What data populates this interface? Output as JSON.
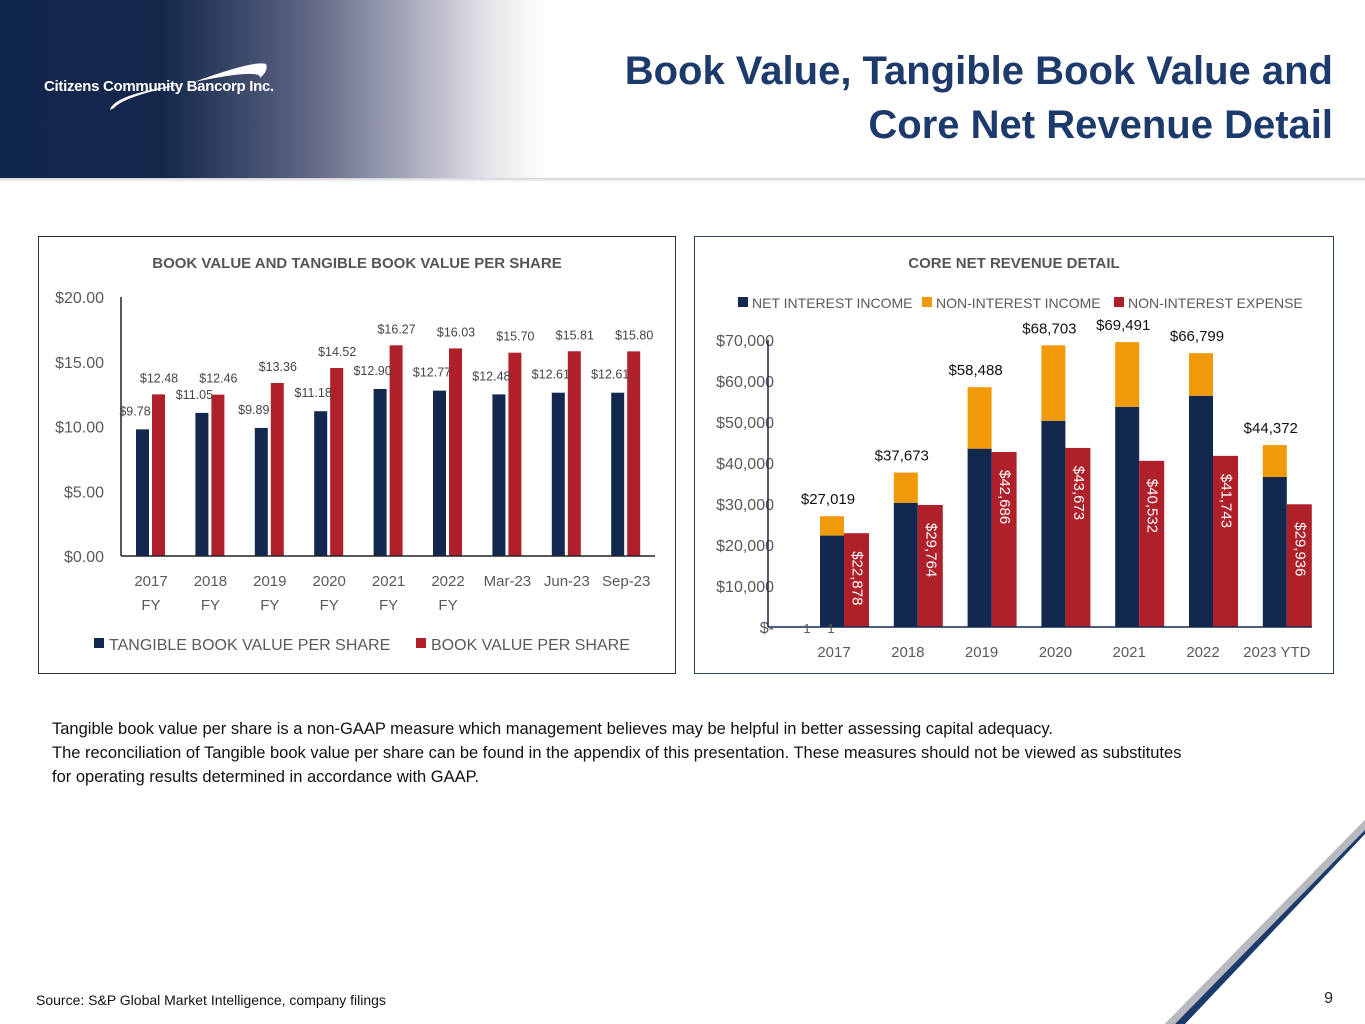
{
  "header": {
    "logo_text": "Citizens Community Bancorp Inc.",
    "title_line1": "Book Value, Tangible Book Value and",
    "title_line2": "Core Net Revenue Detail"
  },
  "colors": {
    "navy": "#13284f",
    "red": "#b0202a",
    "orange": "#f09a0a"
  },
  "chart_data": [
    {
      "type": "bar",
      "title": "BOOK VALUE AND TANGIBLE BOOK VALUE PER SHARE",
      "categories": [
        [
          "2017",
          "FY"
        ],
        [
          "2018",
          "FY"
        ],
        [
          "2019",
          "FY"
        ],
        [
          "2020",
          "FY"
        ],
        [
          "2021",
          "FY"
        ],
        [
          "2022",
          "FY"
        ],
        [
          "Mar-23",
          ""
        ],
        [
          "Jun-23",
          ""
        ],
        [
          "Sep-23",
          ""
        ]
      ],
      "series": [
        {
          "name": "TANGIBLE BOOK VALUE PER SHARE",
          "color": "#13284f",
          "values": [
            9.78,
            11.05,
            9.89,
            11.18,
            12.9,
            12.77,
            12.48,
            12.61,
            12.61
          ],
          "labels": [
            "$9.78",
            "$11.05",
            "$9.89",
            "$11.18",
            "$12.90",
            "$12.77",
            "$12.48",
            "$12.61",
            "$12.61"
          ]
        },
        {
          "name": "BOOK VALUE PER SHARE",
          "color": "#b0202a",
          "values": [
            12.48,
            12.46,
            13.36,
            14.52,
            16.27,
            16.03,
            15.7,
            15.81,
            15.8
          ],
          "labels": [
            "$12.48",
            "$12.46",
            "$13.36",
            "$14.52",
            "$16.27",
            "$16.03",
            "$15.70",
            "$15.81",
            "$15.80"
          ]
        }
      ],
      "ylim": [
        0,
        20
      ],
      "yticks": [
        0,
        5,
        10,
        15,
        20
      ],
      "ytick_labels": [
        "$0.00",
        "$5.00",
        "$10.00",
        "$15.00",
        "$20.00"
      ],
      "legend": "bottom"
    },
    {
      "type": "bar",
      "title": "CORE NET REVENUE DETAIL",
      "categories": [
        "2017",
        "2018",
        "2019",
        "2020",
        "2021",
        "2022",
        "2023 YTD"
      ],
      "series": [
        {
          "name": "NET INTEREST INCOME",
          "color": "#13284f",
          "values": [
            22300,
            30300,
            43500,
            50300,
            53700,
            56400,
            36600
          ]
        },
        {
          "name": "NON-INTEREST INCOME",
          "color": "#f09a0a",
          "values": [
            4719,
            7373,
            14988,
            18403,
            15791,
            10399,
            7772
          ]
        },
        {
          "name": "NON-INTEREST EXPENSE",
          "color": "#b0202a",
          "values": [
            22878,
            29764,
            42686,
            43673,
            40532,
            41743,
            29936
          ],
          "labels": [
            "$22,878",
            "$29,764",
            "$42,686",
            "$43,673",
            "$40,532",
            "$41,743",
            "$29,936"
          ]
        }
      ],
      "totals": [
        "$27,019",
        "$37,673",
        "$58,488",
        "$68,703",
        "$69,491",
        "$66,799",
        "$44,372"
      ],
      "stray_labels": [
        "1",
        "1"
      ],
      "ylim": [
        0,
        70000
      ],
      "yticks": [
        0,
        10000,
        20000,
        30000,
        40000,
        50000,
        60000,
        70000
      ],
      "ytick_labels": [
        "$-",
        "$10,000",
        "$20,000",
        "$30,000",
        "$40,000",
        "$50,000",
        "$60,000",
        "$70,000"
      ],
      "legend": "top"
    }
  ],
  "note": {
    "line1": "Tangible book value per share is a non-GAAP measure which management believes may be helpful in better assessing capital adequacy.",
    "line2": "The reconciliation of Tangible book value per share can be found in the appendix of this presentation. These measures should not be viewed as substitutes",
    "line3": "for  operating results determined in accordance with GAAP."
  },
  "footer": {
    "source": "Source: S&P Global Market Intelligence, company filings",
    "page": "9"
  }
}
